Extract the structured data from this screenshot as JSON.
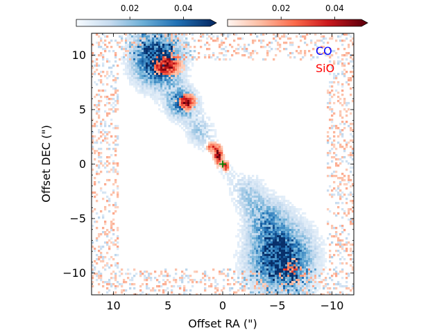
{
  "chart_data": {
    "type": "heatmap",
    "xlabel": "Offset RA (\")",
    "ylabel": "Offset DEC (\")",
    "xlim": [
      12,
      -12
    ],
    "ylim": [
      -12,
      12
    ],
    "xticks": [
      10,
      5,
      0,
      -5,
      -10
    ],
    "xtick_labels": [
      "10",
      "5",
      "0",
      "−5",
      "−10"
    ],
    "yticks": [
      10,
      5,
      0,
      -5,
      -10
    ],
    "ytick_labels": [
      "10",
      "5",
      "0",
      "−5",
      "−10"
    ],
    "legend": [
      {
        "label": "CO",
        "color": "#0000ff"
      },
      {
        "label": "SiO",
        "color": "#ff0000"
      }
    ],
    "colorbars": [
      {
        "name": "CO",
        "cmap": "Blues",
        "range": [
          0,
          0.05
        ],
        "ticks": [
          0.02,
          0.04
        ],
        "tick_labels": [
          "0.02",
          "0.04"
        ],
        "extend": "max"
      },
      {
        "name": "SiO",
        "cmap": "Reds",
        "range": [
          0,
          0.05
        ],
        "ticks": [
          0.02,
          0.04
        ],
        "tick_labels": [
          "0.02",
          "0.04"
        ],
        "extend": "max"
      }
    ],
    "marker": {
      "x": 0,
      "y": 0,
      "symbol": "+",
      "color": "#008000"
    },
    "co_knots": [
      {
        "x": 6.0,
        "y": 9.6,
        "sx": 1.4,
        "sy": 1.6,
        "amp": 0.055
      },
      {
        "x": 3.8,
        "y": 5.6,
        "sx": 0.9,
        "sy": 0.9,
        "amp": 0.035
      },
      {
        "x": 2.2,
        "y": 3.0,
        "sx": 0.8,
        "sy": 0.9,
        "amp": 0.012
      },
      {
        "x": -2.5,
        "y": -2.5,
        "sx": 0.9,
        "sy": 1.0,
        "amp": 0.012
      },
      {
        "x": -4.0,
        "y": -4.8,
        "sx": 1.2,
        "sy": 1.2,
        "amp": 0.02
      },
      {
        "x": -5.3,
        "y": -8.6,
        "sx": 1.8,
        "sy": 2.0,
        "amp": 0.055
      }
    ],
    "sio_knots": [
      {
        "x": 5.2,
        "y": 9.0,
        "sx": 0.9,
        "sy": 0.6,
        "amp": 0.045
      },
      {
        "x": 3.3,
        "y": 5.7,
        "sx": 0.5,
        "sy": 0.45,
        "amp": 0.05
      },
      {
        "x": 0.4,
        "y": 0.8,
        "sx": 0.25,
        "sy": 0.55,
        "amp": 0.05
      },
      {
        "x": 1.0,
        "y": 1.6,
        "sx": 0.3,
        "sy": 0.3,
        "amp": 0.03
      },
      {
        "x": -0.3,
        "y": -0.2,
        "sx": 0.2,
        "sy": 0.3,
        "amp": 0.04
      },
      {
        "x": -6.2,
        "y": -9.4,
        "sx": 0.9,
        "sy": 0.7,
        "amp": 0.02
      }
    ]
  }
}
